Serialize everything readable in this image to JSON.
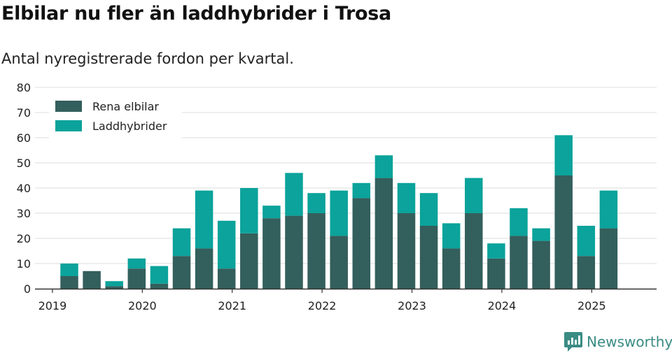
{
  "title": "Elbilar nu fler än laddhybrider i Trosa",
  "subtitle": "Antal nyregistrerade fordon per kvartal.",
  "brand": "Newsworthy",
  "chart_data": {
    "type": "bar",
    "stacked": true,
    "categories": [
      "2019 Q2",
      "2019 Q3",
      "2019 Q4",
      "2020 Q1",
      "2020 Q2",
      "2020 Q3",
      "2020 Q4",
      "2021 Q1",
      "2021 Q2",
      "2021 Q3",
      "2021 Q4",
      "2022 Q1",
      "2022 Q2",
      "2022 Q3",
      "2022 Q4",
      "2023 Q1",
      "2023 Q2",
      "2023 Q3",
      "2023 Q4",
      "2024 Q1",
      "2024 Q2",
      "2024 Q3",
      "2024 Q4",
      "2025 Q1",
      "2025 Q2"
    ],
    "series": [
      {
        "name": "Rena elbilar",
        "color": "#335f5c",
        "values": [
          5,
          7,
          1,
          8,
          2,
          13,
          16,
          8,
          22,
          28,
          29,
          30,
          21,
          36,
          44,
          30,
          25,
          16,
          30,
          12,
          21,
          19,
          45,
          13,
          24
        ]
      },
      {
        "name": "Laddhybrider",
        "color": "#0ba39b",
        "values": [
          5,
          0,
          2,
          4,
          7,
          11,
          23,
          19,
          18,
          5,
          17,
          8,
          18,
          6,
          9,
          12,
          13,
          10,
          14,
          6,
          11,
          5,
          16,
          12,
          15
        ]
      }
    ],
    "xticks": [
      "2019",
      "2020",
      "2021",
      "2022",
      "2023",
      "2024",
      "2025"
    ],
    "ylim": [
      0,
      80
    ],
    "yticks": [
      0,
      10,
      20,
      30,
      40,
      50,
      60,
      70,
      80
    ],
    "grid": true,
    "legend": "top-left",
    "xlabel": "",
    "ylabel": ""
  }
}
